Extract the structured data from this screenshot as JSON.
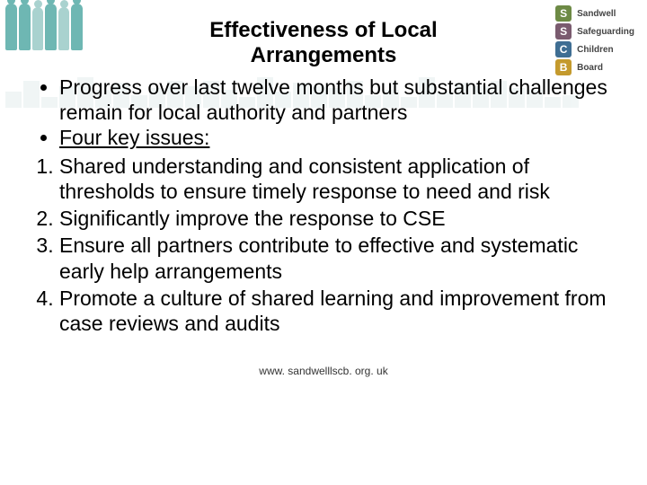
{
  "title": "Effectiveness of Local Arrangements",
  "bullets": [
    "Progress over last twelve months but substantial challenges remain for local authority and partners"
  ],
  "issues_label": "Four key issues:",
  "numbered": [
    "Shared understanding and consistent application of thresholds to ensure timely response to need and risk",
    "Significantly improve the response to CSE",
    "Ensure all partners contribute to effective and systematic early help arrangements",
    "Promote a culture of shared learning and improvement from case reviews and audits"
  ],
  "footer": "www. sandwelllscb. org. uk",
  "logo": {
    "letters": [
      "S",
      "S",
      "C",
      "B"
    ],
    "labels": [
      "Sandwell",
      "Safeguarding",
      "Children",
      "Board"
    ],
    "colors": [
      "#6d8a45",
      "#7a5b6f",
      "#3f6e93",
      "#c49a2d"
    ]
  },
  "silhouette_colors": {
    "back": "#6eb7b3",
    "front": "#a9d2cf"
  },
  "skyline_color": "#e5eeee",
  "text_fontsize": 23,
  "title_fontsize": 24,
  "footer_fontsize": 12
}
